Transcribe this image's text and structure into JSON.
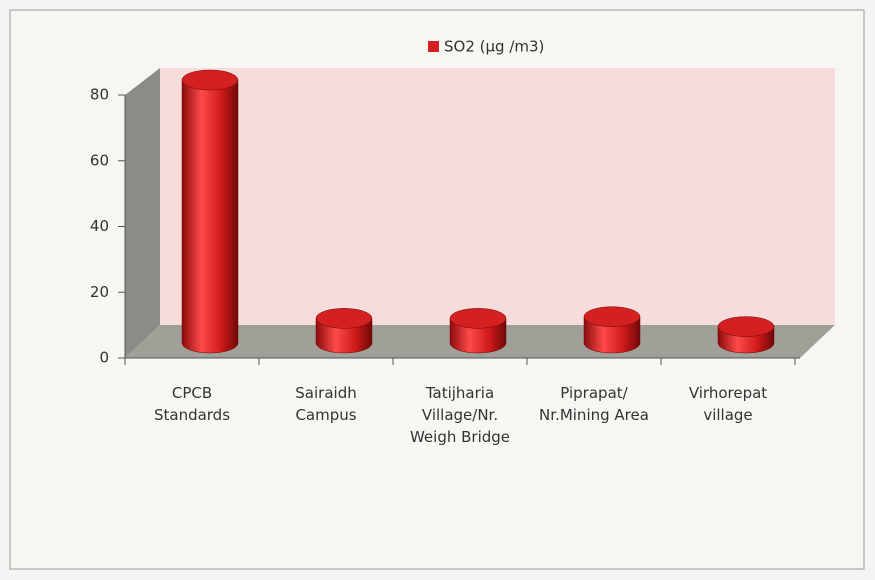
{
  "chart_data": {
    "type": "bar3d",
    "categories": [
      "CPCB Standards",
      "Sairaidh Campus",
      "Tatijharia Village/Nr. Weigh Bridge",
      "Piprapat/ Nr.Mining Area",
      "Virhorepat village"
    ],
    "series": [
      {
        "name": "SO2 (µg /m3)",
        "color": "#d42020",
        "values": [
          80,
          7.5,
          7.5,
          8,
          5
        ]
      }
    ],
    "ylim": [
      0,
      80
    ],
    "yticks": [
      0,
      20,
      40,
      60,
      80
    ],
    "legend": "top"
  }
}
